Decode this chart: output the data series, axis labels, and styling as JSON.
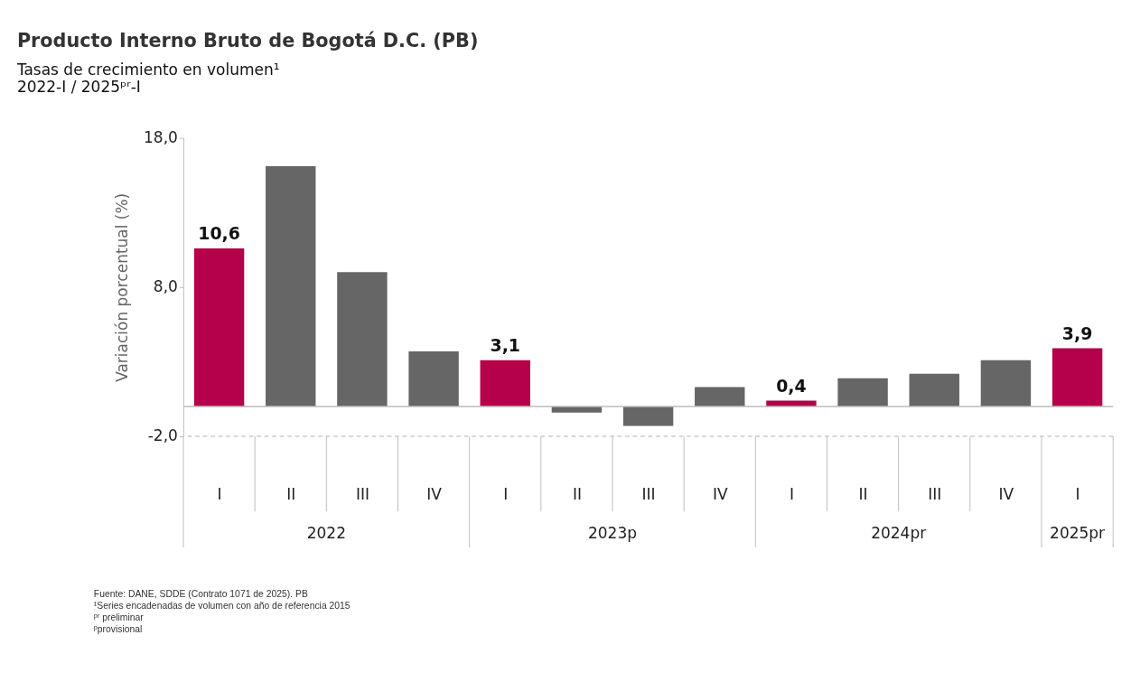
{
  "chart_data": {
    "type": "bar",
    "title": "Producto Interno Bruto de Bogotá D.C. (PB)",
    "subtitle": [
      "Tasas de crecimiento en volumen¹",
      "2022-I / 2025ᵖʳ-I"
    ],
    "ylabel": "Variación porcentual (%)",
    "categories": [
      "I",
      "II",
      "III",
      "IV",
      "I",
      "II",
      "III",
      "IV",
      "I",
      "II",
      "III",
      "IV",
      "I"
    ],
    "values": [
      10.6,
      16.1,
      9.0,
      3.7,
      3.1,
      -0.4,
      -1.3,
      1.3,
      0.4,
      1.9,
      2.2,
      3.1,
      3.9
    ],
    "colors": [
      "#b5004b",
      "#666666",
      "#666666",
      "#666666",
      "#b5004b",
      "#666666",
      "#666666",
      "#666666",
      "#b5004b",
      "#666666",
      "#666666",
      "#666666",
      "#b5004b"
    ],
    "value_labels": [
      "10,6",
      null,
      null,
      null,
      "3,1",
      null,
      null,
      null,
      "0,4",
      null,
      null,
      null,
      "3,9"
    ],
    "ylim": [
      -2,
      18
    ],
    "yticks": [
      {
        "value": -2,
        "label": "-2,0"
      },
      {
        "value": 8,
        "label": "8,0"
      },
      {
        "value": 18,
        "label": "18,0"
      }
    ],
    "ref_lines": [
      {
        "axis": "y",
        "value": 0,
        "color": "#bbbbbb"
      },
      {
        "axis": "y",
        "value": -2,
        "color": "#cccccc",
        "line_style": "dashed"
      }
    ],
    "grid": false,
    "annotations": [
      "2022",
      "2023p",
      "2024pr",
      "2025pr",
      "Fuente: DANE, SDDE (Contrato 1071 de 2025). PB",
      "¹Series encadenadas de volumen con año de referencia 2015",
      "ᵖʳ preliminar",
      "ᵖprovisional"
    ]
  }
}
